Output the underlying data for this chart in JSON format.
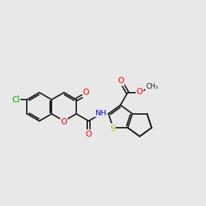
{
  "bg_color": "#e8e8e8",
  "bond_color": "#1a1a1a",
  "bond_width": 1.4,
  "atom_colors": {
    "O": "#ff0000",
    "N": "#0000cc",
    "S": "#bbbb00",
    "Cl": "#00aa00",
    "C": "#1a1a1a"
  },
  "font_size": 8.5,
  "fig_bg": "#e8e8e8"
}
